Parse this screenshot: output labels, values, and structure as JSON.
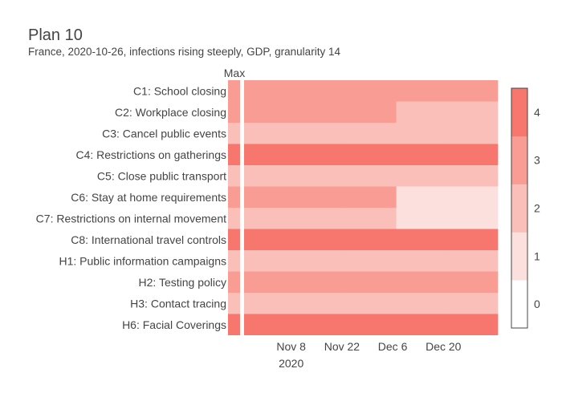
{
  "chart_data": {
    "type": "heatmap",
    "title": "Plan 10",
    "subtitle": "France, 2020-10-26, infections rising steeply, GDP, granularity 14",
    "max_column_label": "Max",
    "rows": [
      "C1: School closing",
      "C2: Workplace closing",
      "C3: Cancel public events",
      "C4: Restrictions on gatherings",
      "C5: Close public transport",
      "C6: Stay at home requirements",
      "C7: Restrictions on internal movement",
      "C8: International travel controls",
      "H1: Public information campaigns",
      "H2: Testing policy",
      "H3: Contact tracing",
      "H6: Facial Coverings"
    ],
    "max_values": [
      3,
      3,
      2,
      4,
      2,
      3,
      2,
      4,
      2,
      3,
      2,
      4
    ],
    "periods": [
      "2020-10-26",
      "2020-11-09",
      "2020-11-23",
      "2020-12-07",
      "2020-12-21"
    ],
    "x_range": [
      "2020-10-26",
      "2021-01-04"
    ],
    "values": [
      [
        3,
        3,
        3,
        3,
        3
      ],
      [
        3,
        3,
        3,
        2,
        2
      ],
      [
        2,
        2,
        2,
        2,
        2
      ],
      [
        4,
        4,
        4,
        4,
        4
      ],
      [
        2,
        2,
        2,
        2,
        2
      ],
      [
        3,
        3,
        3,
        1,
        1
      ],
      [
        2,
        2,
        2,
        1,
        1
      ],
      [
        4,
        4,
        4,
        4,
        4
      ],
      [
        2,
        2,
        2,
        2,
        2
      ],
      [
        3,
        3,
        3,
        3,
        3
      ],
      [
        2,
        2,
        2,
        2,
        2
      ],
      [
        4,
        4,
        4,
        4,
        4
      ]
    ],
    "x_ticks": [
      {
        "date": "2020-11-08",
        "label": "Nov 8",
        "sublabel": "2020"
      },
      {
        "date": "2020-11-22",
        "label": "Nov 22",
        "sublabel": ""
      },
      {
        "date": "2020-12-06",
        "label": "Dec 6",
        "sublabel": ""
      },
      {
        "date": "2020-12-20",
        "label": "Dec 20",
        "sublabel": ""
      }
    ],
    "colorbar": {
      "min": -0.5,
      "max": 4.5,
      "ticks": [
        "0",
        "1",
        "2",
        "3",
        "4"
      ],
      "colors": [
        "#ffffff",
        "#fce0de",
        "#fbbfb9",
        "#f99c94",
        "#f7776e"
      ]
    }
  }
}
